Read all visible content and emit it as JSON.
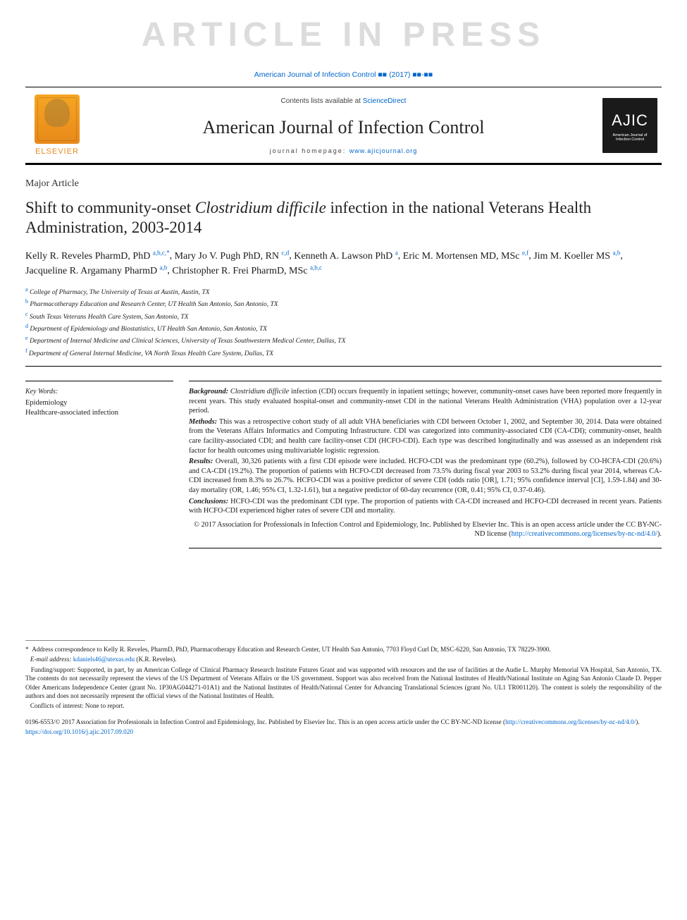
{
  "watermark": "ARTICLE IN PRESS",
  "citation_prefix": "American Journal of Infection Control",
  "citation_suffix": "(2017)",
  "citation_pages": "■■-■■",
  "contents_label": "Contents lists available at",
  "contents_link": "ScienceDirect",
  "journal_name": "American Journal of Infection Control",
  "homepage_label": "journal homepage:",
  "homepage_url": "www.ajicjournal.org",
  "elsevier_label": "ELSEVIER",
  "ajic_logo_big": "AJIC",
  "ajic_logo_small": "American Journal of Infection Control",
  "article_type": "Major Article",
  "title_pre": "Shift to community-onset ",
  "title_em": "Clostridium difficile",
  "title_post": " infection in the national Veterans Health Administration, 2003-2014",
  "authors": [
    {
      "name": "Kelly R. Reveles PharmD, PhD",
      "aff": "a,b,c,",
      "star": "*"
    },
    {
      "name": "Mary Jo V. Pugh PhD, RN",
      "aff": "c,d",
      "star": ""
    },
    {
      "name": "Kenneth A. Lawson PhD",
      "aff": "a",
      "star": ""
    },
    {
      "name": "Eric M. Mortensen MD, MSc",
      "aff": "e,f",
      "star": ""
    },
    {
      "name": "Jim M. Koeller MS",
      "aff": "a,b",
      "star": ""
    },
    {
      "name": "Jacqueline R. Argamany PharmD",
      "aff": "a,b",
      "star": ""
    },
    {
      "name": "Christopher R. Frei PharmD, MSc",
      "aff": "a,b,c",
      "star": ""
    }
  ],
  "affiliations": [
    {
      "sup": "a",
      "text": "College of Pharmacy, The University of Texas at Austin, Austin, TX"
    },
    {
      "sup": "b",
      "text": "Pharmacotherapy Education and Research Center, UT Health San Antonio, San Antonio, TX"
    },
    {
      "sup": "c",
      "text": "South Texas Veterans Health Care System, San Antonio, TX"
    },
    {
      "sup": "d",
      "text": "Department of Epidemiology and Biostatistics, UT Health San Antonio, San Antonio, TX"
    },
    {
      "sup": "e",
      "text": "Department of Internal Medicine and Clinical Sciences, University of Texas Southwestern Medical Center, Dallas, TX"
    },
    {
      "sup": "f",
      "text": "Department of General Internal Medicine, VA North Texas Health Care System, Dallas, TX"
    }
  ],
  "keywords_head": "Key Words:",
  "keywords": [
    "Epidemiology",
    "Healthcare-associated infection"
  ],
  "abstract": {
    "background_label": "Background:",
    "background": "Clostridium difficile infection (CDI) occurs frequently in inpatient settings; however, community-onset cases have been reported more frequently in recent years. This study evaluated hospital-onset and community-onset CDI in the national Veterans Health Administration (VHA) population over a 12-year period.",
    "methods_label": "Methods:",
    "methods": "This was a retrospective cohort study of all adult VHA beneficiaries with CDI between October 1, 2002, and September 30, 2014. Data were obtained from the Veterans Affairs Informatics and Computing Infrastructure. CDI was categorized into community-associated CDI (CA-CDI); community-onset, health care facility-associated CDI; and health care facility-onset CDI (HCFO-CDI). Each type was described longitudinally and was assessed as an independent risk factor for health outcomes using multivariable logistic regression.",
    "results_label": "Results:",
    "results": "Overall, 30,326 patients with a first CDI episode were included. HCFO-CDI was the predominant type (60.2%), followed by CO-HCFA-CDI (20.6%) and CA-CDI (19.2%). The proportion of patients with HCFO-CDI decreased from 73.5% during fiscal year 2003 to 53.2% during fiscal year 2014, whereas CA-CDI increased from 8.3% to 26.7%. HCFO-CDI was a positive predictor of severe CDI (odds ratio [OR], 1.71; 95% confidence interval [CI], 1.59-1.84) and 30-day mortality (OR, 1.46; 95% CI, 1.32-1.61), but a negative predictor of 60-day recurrence (OR, 0.41; 95% CI, 0.37-0.46).",
    "conclusions_label": "Conclusions:",
    "conclusions": "HCFO-CDI was the predominant CDI type. The proportion of patients with CA-CDI increased and HCFO-CDI decreased in recent years. Patients with HCFO-CDI experienced higher rates of severe CDI and mortality.",
    "copyright": "© 2017 Association for Professionals in Infection Control and Epidemiology, Inc. Published by Elsevier Inc. This is an open access article under the CC BY-NC-ND license (",
    "cc_link": "http://creativecommons.org/licenses/by-nc-nd/4.0/",
    "copyright_end": ")."
  },
  "footer": {
    "corr_star": "*",
    "corr": "Address correspondence to Kelly R. Reveles, PharmD, PhD, Pharmacotherapy Education and Research Center, UT Health San Antonio, 7703 Floyd Curl Dr, MSC-6220, San Antonio, TX 78229-3900.",
    "email_label": "E-mail address:",
    "email": "kdaniels46@utexas.edu",
    "email_paren": "(K.R. Reveles).",
    "funding": "Funding/support: Supported, in part, by an American College of Clinical Pharmacy Research Institute Futures Grant and was supported with resources and the use of facilities at the Audie L. Murphy Memorial VA Hospital, San Antonio, TX. The contents do not necessarily represent the views of the US Department of Veterans Affairs or the US government. Support was also received from the National Institutes of Health/National Institute on Aging San Antonio Claude D. Pepper Older Americans Independence Center (grant No. 1P30AG044271-01A1) and the National Institutes of Health/National Center for Advancing Translational Sciences (grant No. UL1 TR001120). The content is solely the responsibility of the authors and does not necessarily represent the official views of the National Institutes of Health.",
    "conflicts": "Conflicts of interest: None to report.",
    "issn": "0196-6553/© 2017 Association for Professionals in Infection Control and Epidemiology, Inc. Published by Elsevier Inc. This is an open access article under the CC BY-NC-ND license (",
    "issn_link": "http://creativecommons.org/licenses/by-nc-nd/4.0/",
    "issn_end": ").",
    "doi": "https://doi.org/10.1016/j.ajic.2017.09.020"
  },
  "colors": {
    "link": "#0066cc",
    "watermark": "#dcdcdc",
    "elsevier": "#e8891a",
    "text": "#1a1a1a"
  }
}
